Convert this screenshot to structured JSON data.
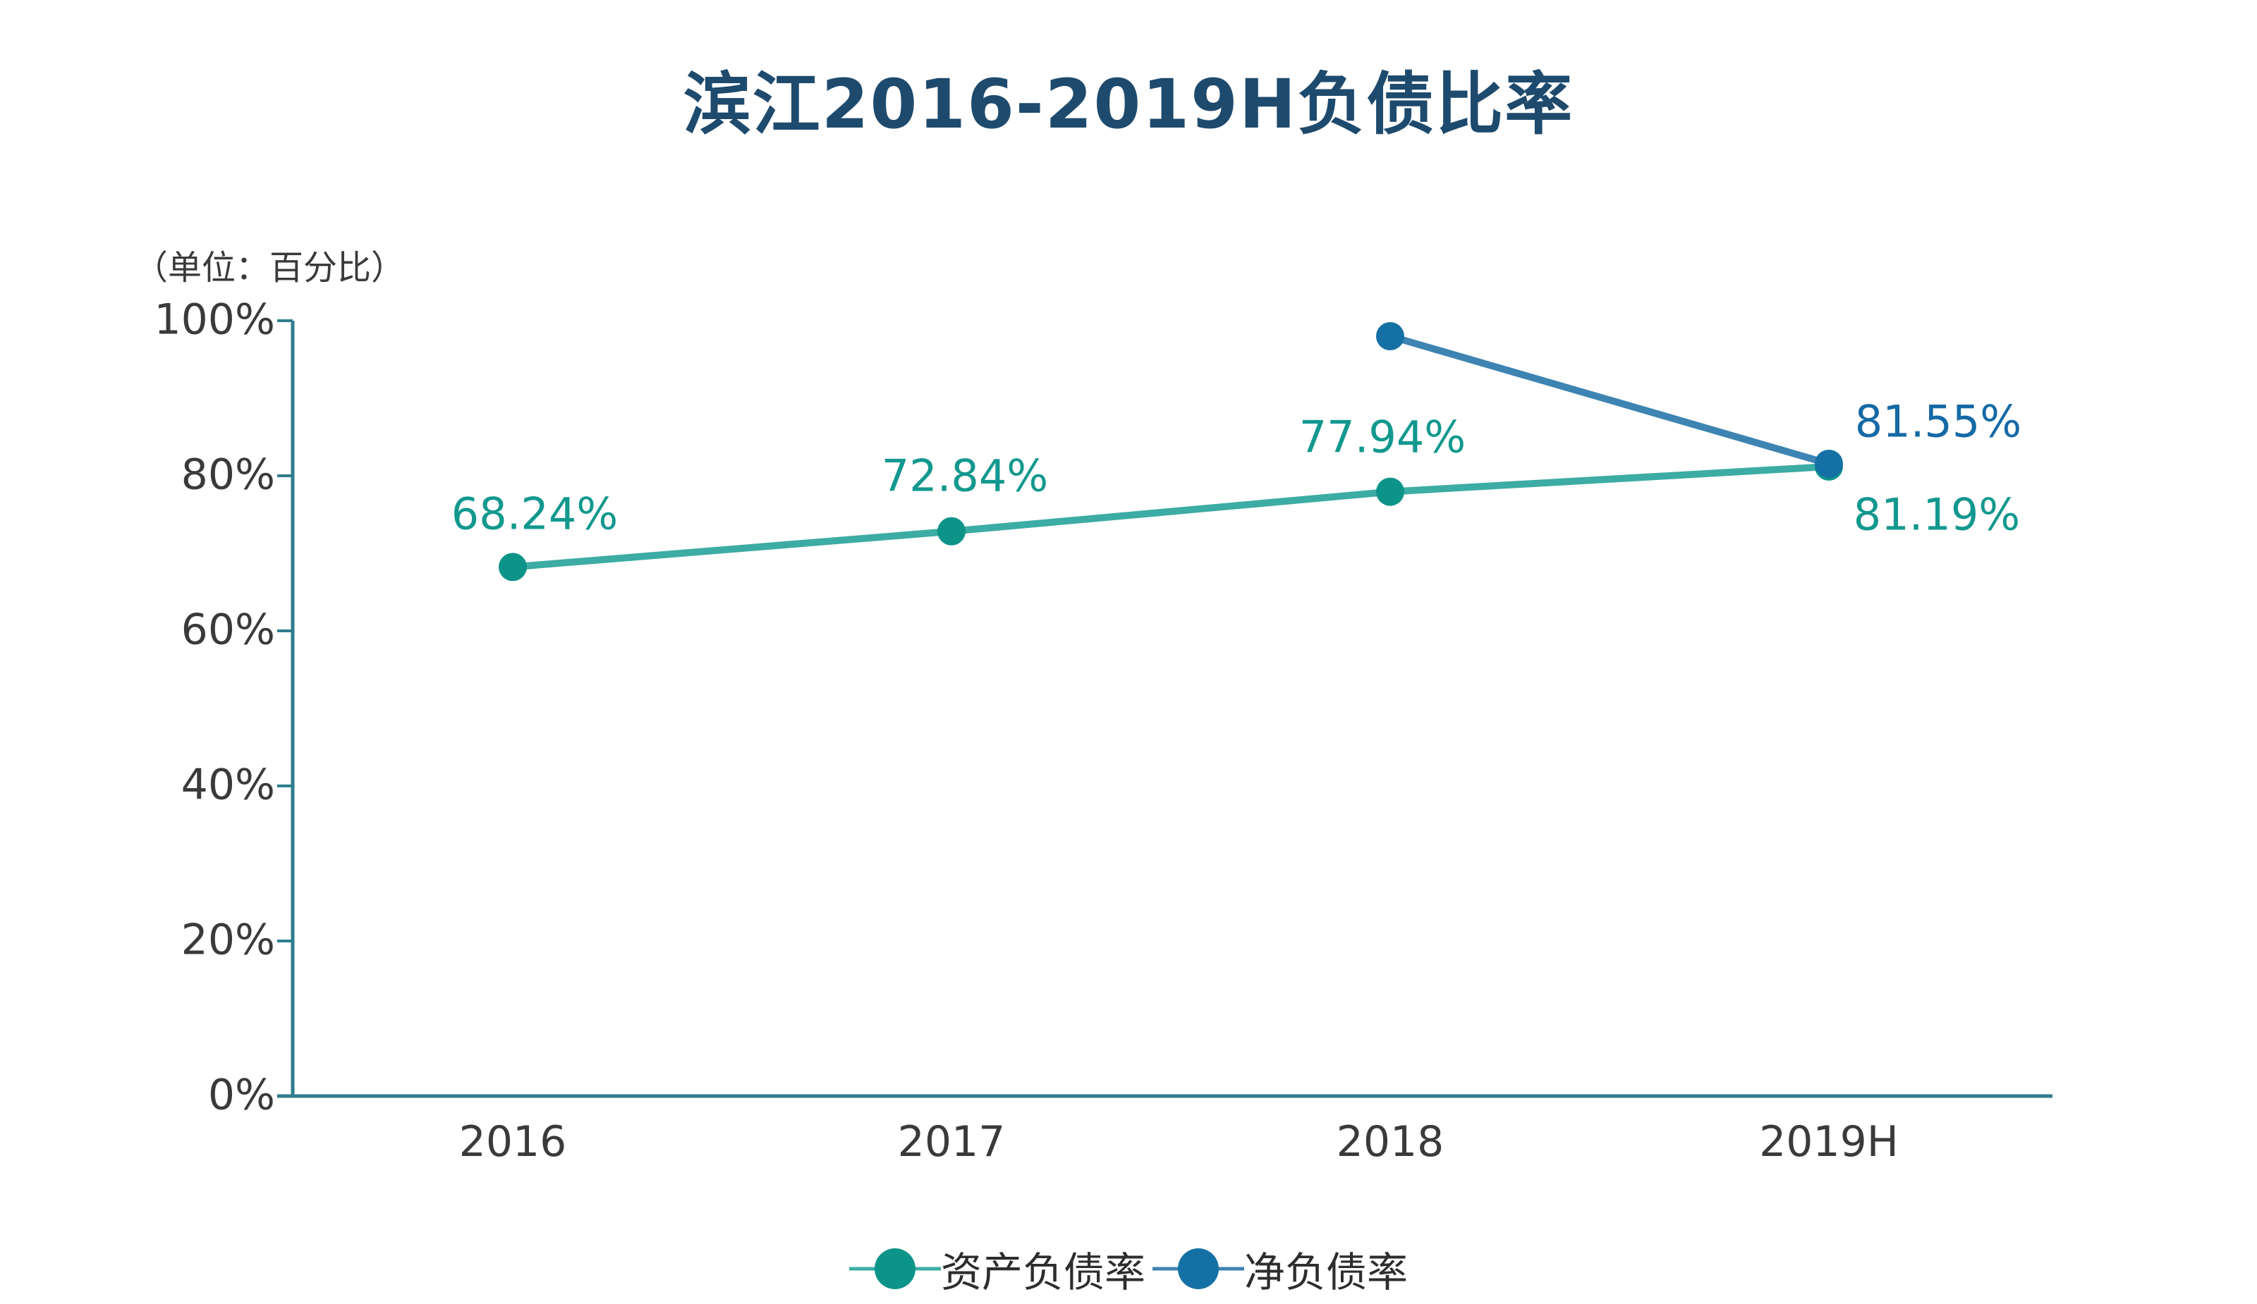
{
  "title": "滨江2016-2019H负债比率",
  "unit_label": "（单位：百分比）",
  "colors": {
    "title": "#1E4A6D",
    "axis": "#2E7D8D",
    "axis_text": "#3A3A3A",
    "legend_text": "#2D2D2D",
    "teal_line": "#3CACA4",
    "teal_dot": "#0D9489",
    "teal_text": "#12988E",
    "blue_line": "#3E84B2",
    "blue_dot": "#1571A5",
    "blue_text": "#156AA5"
  },
  "chart_data": {
    "type": "line",
    "title": "滨江2016-2019H负债比率",
    "unit": "百分比",
    "categories": [
      "2016",
      "2017",
      "2018",
      "2019H"
    ],
    "yticks": [
      "0%",
      "20%",
      "40%",
      "60%",
      "80%",
      "100%"
    ],
    "ylim": [
      0,
      100
    ],
    "grid": false,
    "legend_position": "bottom",
    "series": [
      {
        "name": "资产负债率",
        "color_key": "teal",
        "values": [
          68.24,
          72.84,
          77.94,
          81.19
        ],
        "labels": [
          "68.24%",
          "72.84%",
          "77.94%",
          "81.19%"
        ]
      },
      {
        "name": "净负债率",
        "color_key": "blue",
        "values": [
          null,
          null,
          98,
          81.55
        ],
        "labels": [
          null,
          null,
          null,
          "81.55%"
        ]
      }
    ]
  }
}
